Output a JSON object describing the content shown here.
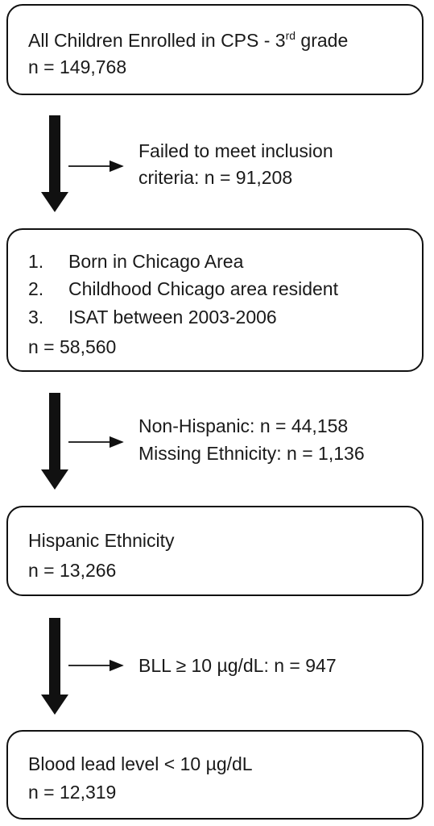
{
  "boxes": [
    {
      "lines": [
        {
          "text": "All Children Enrolled in CPS - 3",
          "sup": "rd",
          "after": " grade"
        },
        {
          "text": "n = 149,768"
        }
      ]
    },
    {
      "items": [
        {
          "num": "1.",
          "text": "Born in Chicago Area"
        },
        {
          "num": "2.",
          "text": "Childhood Chicago area resident"
        },
        {
          "num": "3.",
          "text": "ISAT between 2003-2006"
        }
      ],
      "lines": [
        {
          "text": "n = 58,560"
        }
      ]
    },
    {
      "lines": [
        {
          "text": "Hispanic Ethnicity"
        },
        {
          "text": "n = 13,266"
        }
      ]
    },
    {
      "lines": [
        {
          "text": "Blood lead level < 10 µg/dL"
        },
        {
          "text": "n = 12,319"
        }
      ]
    }
  ],
  "exclusions": [
    {
      "lines": [
        "Failed to meet inclusion",
        "criteria: n = 91,208"
      ]
    },
    {
      "lines": [
        "Non-Hispanic: n = 44,158",
        "Missing Ethnicity: n = 1,136"
      ]
    },
    {
      "lines": [
        "BLL ≥ 10 µg/dL: n = 947"
      ]
    }
  ]
}
